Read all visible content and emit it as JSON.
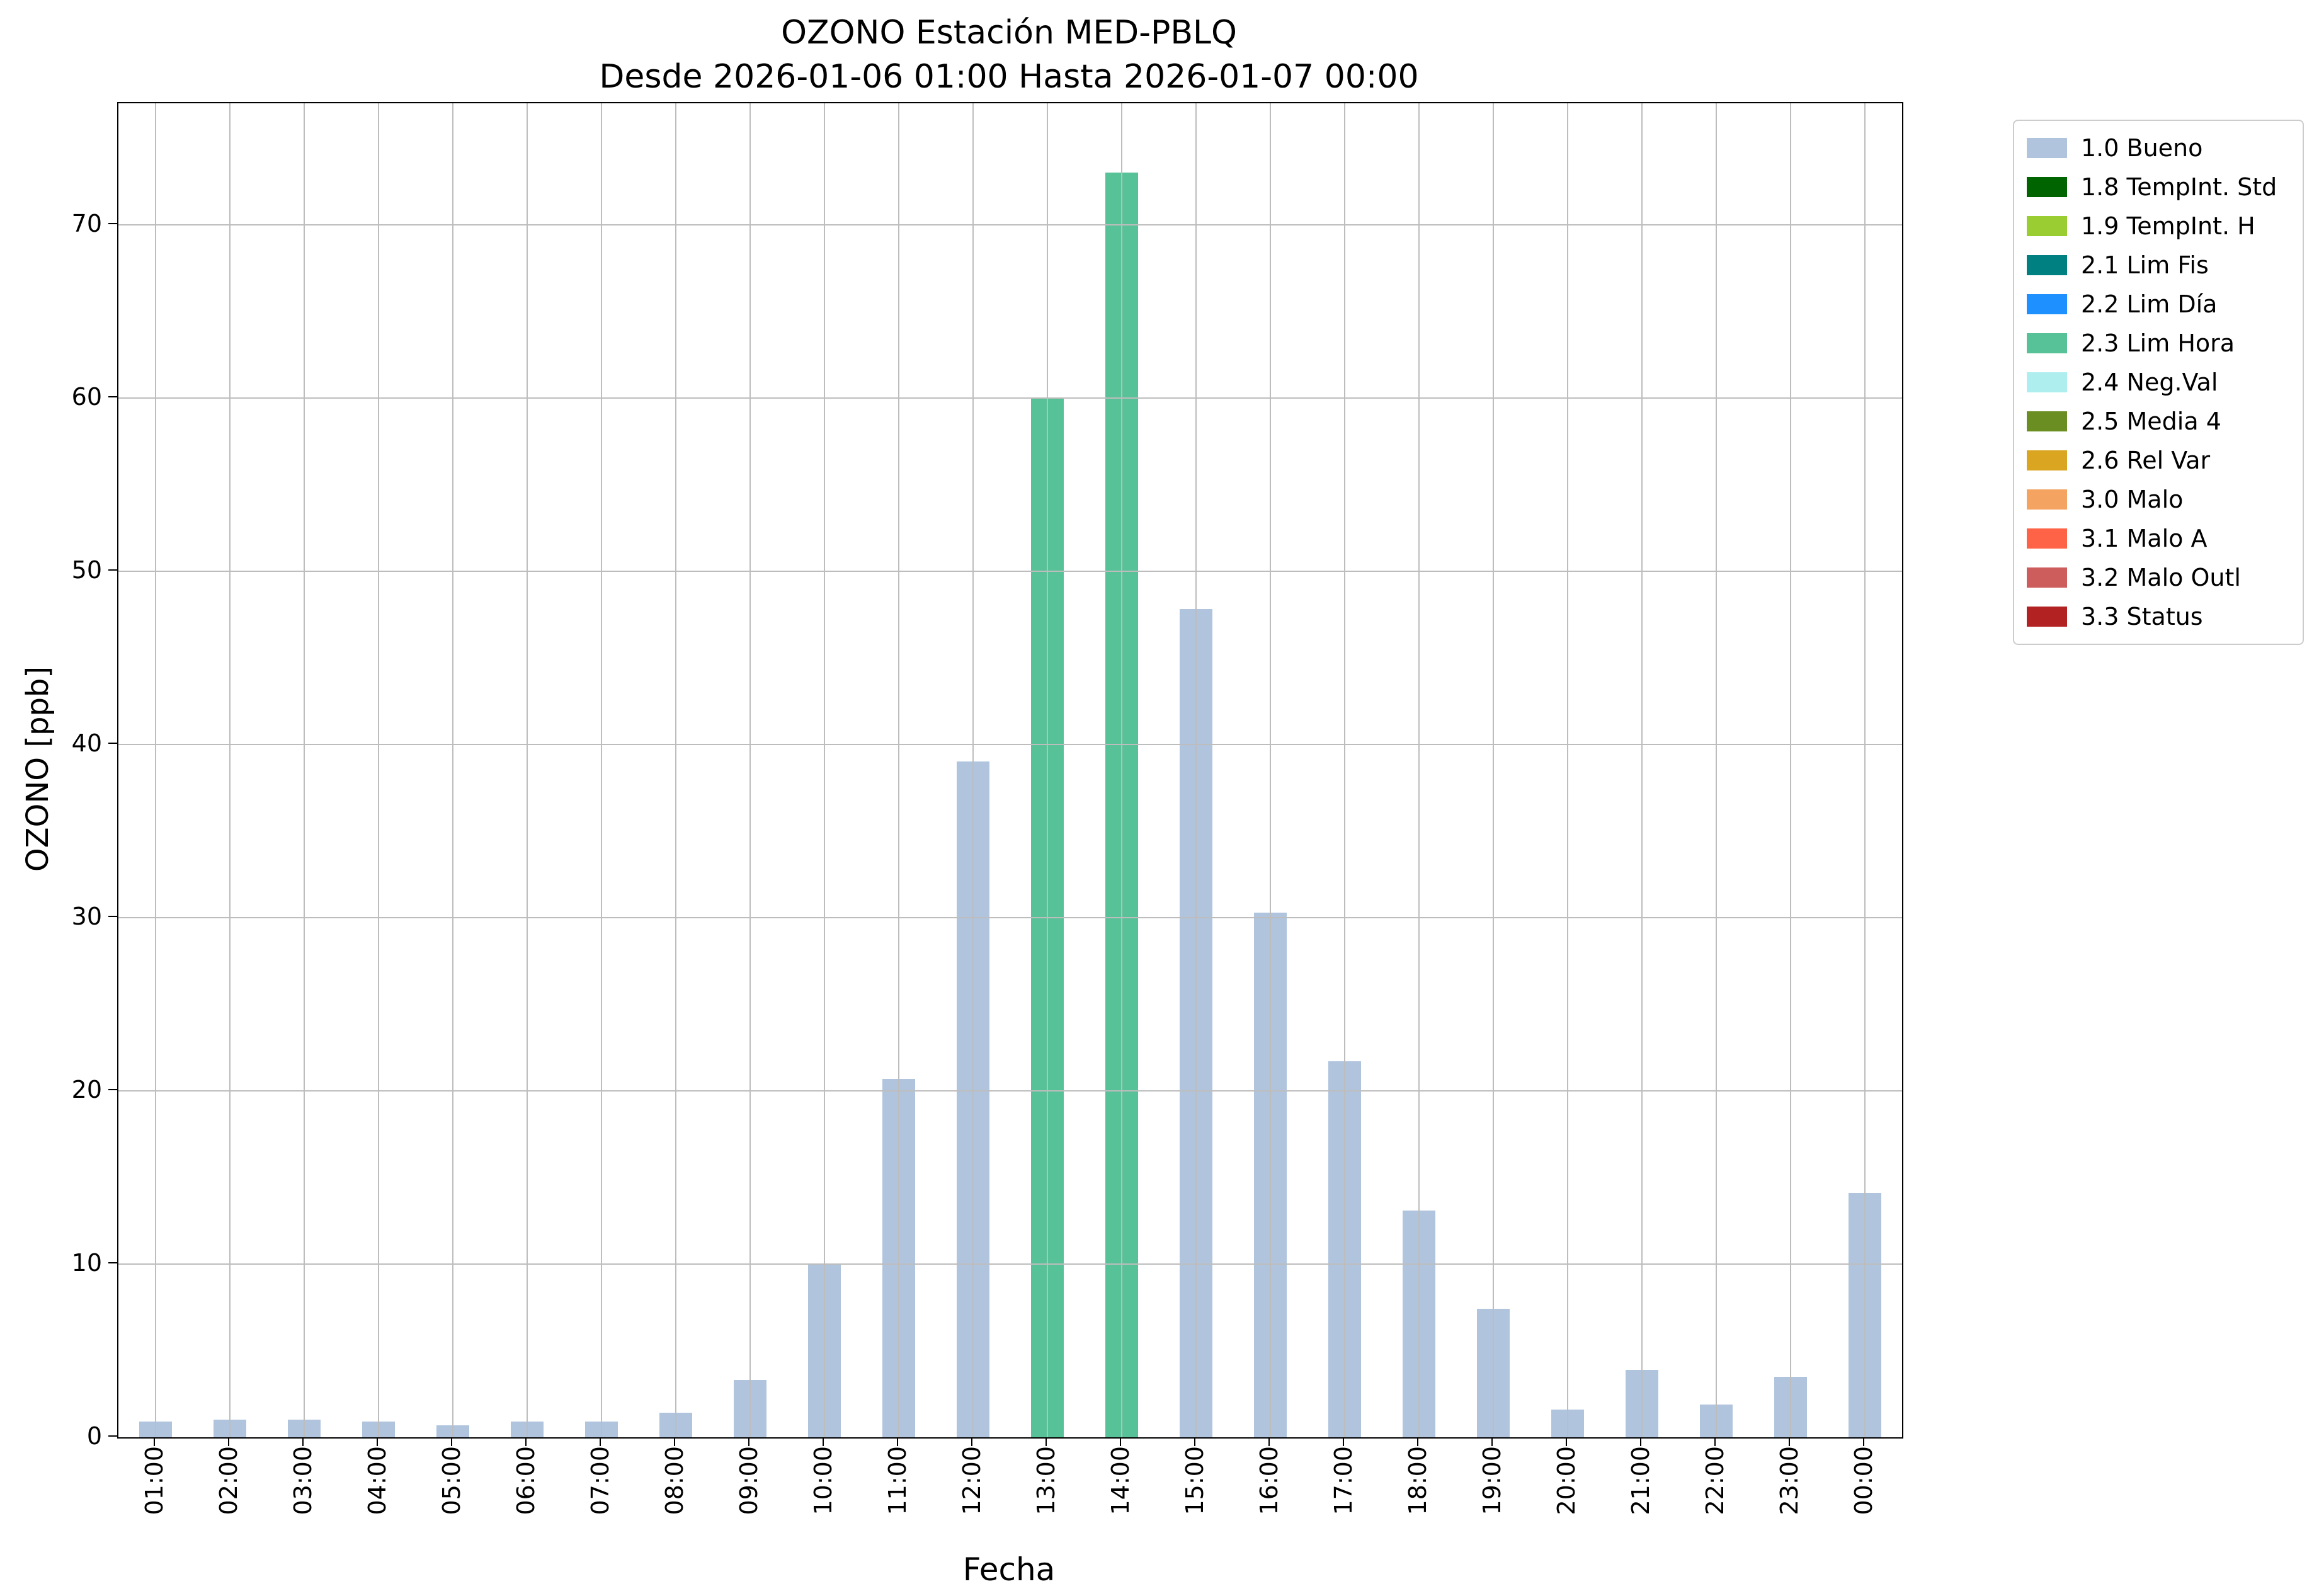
{
  "chart_data": {
    "type": "bar",
    "title": "OZONO Estación MED-PBLQ",
    "subtitle": "Desde 2026-01-06 01:00 Hasta 2026-01-07 00:00",
    "xlabel": "Fecha",
    "ylabel": "OZONO [ppb]",
    "ylim": [
      0,
      77
    ],
    "yticks": [
      0,
      10,
      20,
      30,
      40,
      50,
      60,
      70
    ],
    "grid": true,
    "legend_position": "outside-top-right",
    "categories": [
      "01:00",
      "02:00",
      "03:00",
      "04:00",
      "05:00",
      "06:00",
      "07:00",
      "08:00",
      "09:00",
      "10:00",
      "11:00",
      "12:00",
      "13:00",
      "14:00",
      "15:00",
      "16:00",
      "17:00",
      "18:00",
      "19:00",
      "20:00",
      "21:00",
      "22:00",
      "23:00",
      "00:00"
    ],
    "values": [
      0.9,
      1.0,
      1.0,
      0.9,
      0.7,
      0.9,
      0.9,
      1.4,
      3.3,
      10.0,
      20.7,
      39.0,
      60.0,
      73.0,
      47.8,
      30.3,
      21.7,
      13.1,
      7.4,
      1.6,
      3.9,
      1.9,
      3.5,
      14.1
    ],
    "bar_flags": [
      "1.0 Bueno",
      "1.0 Bueno",
      "1.0 Bueno",
      "1.0 Bueno",
      "1.0 Bueno",
      "1.0 Bueno",
      "1.0 Bueno",
      "1.0 Bueno",
      "1.0 Bueno",
      "1.0 Bueno",
      "1.0 Bueno",
      "1.0 Bueno",
      "2.3 Lim Hora",
      "2.3 Lim Hora",
      "1.0 Bueno",
      "1.0 Bueno",
      "1.0 Bueno",
      "1.0 Bueno",
      "1.0 Bueno",
      "1.0 Bueno",
      "1.0 Bueno",
      "1.0 Bueno",
      "1.0 Bueno",
      "1.0 Bueno"
    ],
    "legend": [
      {
        "label": "1.0 Bueno",
        "color": "#B0C4DE"
      },
      {
        "label": "1.8 TempInt. Std",
        "color": "#006400"
      },
      {
        "label": "1.9 TempInt. H",
        "color": "#9ACD32"
      },
      {
        "label": "2.1 Lim Fis",
        "color": "#008080"
      },
      {
        "label": "2.2 Lim Día",
        "color": "#1E90FF"
      },
      {
        "label": "2.3 Lim Hora",
        "color": "#57C198"
      },
      {
        "label": "2.4 Neg.Val",
        "color": "#AFEEEE"
      },
      {
        "label": "2.5 Media 4",
        "color": "#6B8E23"
      },
      {
        "label": "2.6 Rel Var",
        "color": "#DAA520"
      },
      {
        "label": "3.0 Malo",
        "color": "#F4A460"
      },
      {
        "label": "3.1 Malo A",
        "color": "#FF6347"
      },
      {
        "label": "3.2 Malo Outl",
        "color": "#CD5C5C"
      },
      {
        "label": "3.3 Status",
        "color": "#B22222"
      }
    ],
    "colors": {
      "grid": "#bdbdbd",
      "spine": "#000000",
      "bar_default": "#B0C4DE",
      "bar_exceed_hour": "#57C198"
    }
  }
}
